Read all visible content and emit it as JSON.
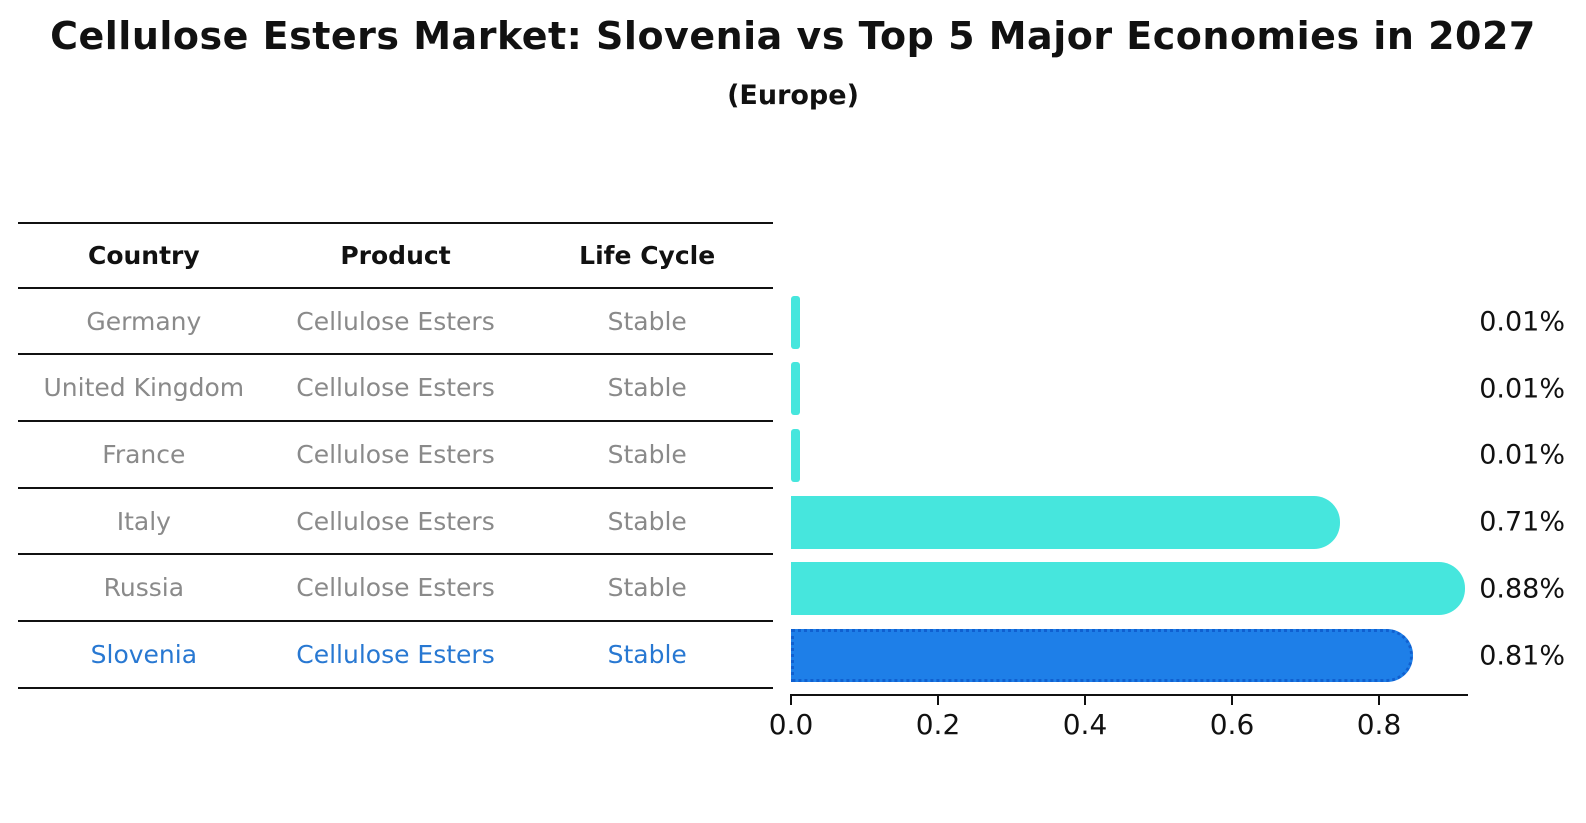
{
  "title": "Cellulose Esters Market: Slovenia vs Top 5 Major Economies in 2027",
  "subtitle": "(Europe)",
  "table": {
    "headers": [
      "Country",
      "Product",
      "Life Cycle"
    ],
    "rows": [
      {
        "country": "Germany",
        "product": "Cellulose Esters",
        "life_cycle": "Stable",
        "highlighted": false
      },
      {
        "country": "United Kingdom",
        "product": "Cellulose Esters",
        "life_cycle": "Stable",
        "highlighted": false
      },
      {
        "country": "France",
        "product": "Cellulose Esters",
        "life_cycle": "Stable",
        "highlighted": false
      },
      {
        "country": "Italy",
        "product": "Cellulose Esters",
        "life_cycle": "Stable",
        "highlighted": false
      },
      {
        "country": "Russia",
        "product": "Cellulose Esters",
        "life_cycle": "Stable",
        "highlighted": false
      },
      {
        "country": "Slovenia",
        "product": "Cellulose Esters",
        "life_cycle": "Stable",
        "highlighted": true
      }
    ]
  },
  "chart_data": {
    "type": "bar",
    "orientation": "horizontal",
    "title": "Cellulose Esters Market: Slovenia vs Top 5 Major Economies in 2027",
    "subtitle": "(Europe)",
    "categories": [
      "Germany",
      "United Kingdom",
      "France",
      "Italy",
      "Russia",
      "Slovenia"
    ],
    "values": [
      0.01,
      0.01,
      0.01,
      0.71,
      0.88,
      0.81
    ],
    "value_labels": [
      "0.01%",
      "0.01%",
      "0.01%",
      "0.71%",
      "0.88%",
      "0.81%"
    ],
    "highlight_category": "Slovenia",
    "x_ticks": [
      0.0,
      0.2,
      0.4,
      0.6,
      0.8
    ],
    "x_tick_labels": [
      "0.0",
      "0.2",
      "0.4",
      "0.6",
      "0.8"
    ],
    "xlim": [
      0,
      0.92
    ],
    "grid": false,
    "legend": "none",
    "bar_color": "#46e6dd",
    "highlight_bar_color": "#1e7fe8",
    "highlight_border_color": "#1060d0",
    "highlight_text_color": "#2878d2"
  }
}
